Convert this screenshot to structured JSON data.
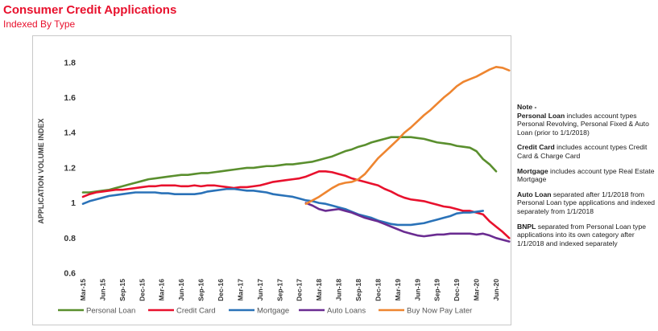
{
  "header": {
    "title": "Consumer Credit Applications",
    "subtitle": "Indexed By Type"
  },
  "notes": {
    "title": "Note -",
    "items": [
      {
        "bold": "Personal Loan",
        "text": " includes account types Personal Revolving, Personal Fixed & Auto Loan (prior to 1/1/2018)"
      },
      {
        "bold": "Credit Card",
        "text": " includes account types Credit Card & Charge Card"
      },
      {
        "bold": "Mortgage",
        "text": " includes account type Real Estate Mortgage"
      },
      {
        "bold": "Auto Loan",
        "text": " separated after 1/1/2018 from Personal Loan type applications and indexed separately from 1/1/2018"
      },
      {
        "bold": "BNPL",
        "text": " separated from Personal Loan type applications into its own category after 1/1/2018 and indexed separately"
      }
    ]
  },
  "colors": {
    "title": "#e8112d",
    "personal_loan": "#5a8f2e",
    "credit_card": "#e8112d",
    "mortgage": "#2a72b8",
    "auto_loans": "#6a2c91",
    "bnpl": "#ee8530"
  },
  "chart_data": {
    "type": "line",
    "title": "Consumer Credit Applications",
    "subtitle": "Indexed By Type",
    "ylabel": "APPLICATION VOLUME INDEX",
    "xlabel": "",
    "ylim": [
      0.6,
      1.9
    ],
    "yticks": [
      0.6,
      0.8,
      1,
      1.2,
      1.4,
      1.6,
      1.8
    ],
    "ytick_labels": [
      "0.6",
      "0.8",
      "1",
      "1.2",
      "1.4",
      "1.6",
      "1.8"
    ],
    "grid": false,
    "legend_position": "bottom",
    "xtick_labels": [
      "Mar-15",
      "Jun-15",
      "Sep-15",
      "Dec-15",
      "Mar-16",
      "Jun-16",
      "Sep-16",
      "Dec-16",
      "Mar-17",
      "Jun-17",
      "Sep-17",
      "Dec-17",
      "Mar-18",
      "Jun-18",
      "Sep-18",
      "Dec-18",
      "Mar-19",
      "Jun-19",
      "Sep-19",
      "Dec-19",
      "Mar-20",
      "Jun-20"
    ],
    "x_start": "Mar-15",
    "x_end": "Jun-20",
    "series": [
      {
        "name": "Personal Loan",
        "color": "#5a8f2e",
        "start": "Mar-15",
        "values": [
          1.06,
          1.06,
          1.065,
          1.07,
          1.075,
          1.085,
          1.095,
          1.105,
          1.115,
          1.125,
          1.135,
          1.14,
          1.145,
          1.15,
          1.155,
          1.16,
          1.16,
          1.165,
          1.17,
          1.17,
          1.175,
          1.18,
          1.185,
          1.19,
          1.195,
          1.2,
          1.2,
          1.205,
          1.21,
          1.21,
          1.215,
          1.22,
          1.22,
          1.225,
          1.23,
          1.235,
          1.245,
          1.255,
          1.265,
          1.28,
          1.295,
          1.305,
          1.32,
          1.33,
          1.345,
          1.355,
          1.365,
          1.375,
          1.375,
          1.375,
          1.375,
          1.37,
          1.365,
          1.355,
          1.345,
          1.34,
          1.335,
          1.325,
          1.32,
          1.315,
          1.295,
          1.25,
          1.22,
          1.18
        ]
      },
      {
        "name": "Credit Card",
        "color": "#e8112d",
        "start": "Mar-15",
        "values": [
          1.035,
          1.05,
          1.06,
          1.065,
          1.07,
          1.075,
          1.075,
          1.08,
          1.085,
          1.09,
          1.095,
          1.095,
          1.1,
          1.1,
          1.1,
          1.095,
          1.095,
          1.1,
          1.095,
          1.1,
          1.1,
          1.095,
          1.09,
          1.085,
          1.09,
          1.09,
          1.095,
          1.1,
          1.11,
          1.12,
          1.125,
          1.13,
          1.135,
          1.14,
          1.15,
          1.165,
          1.18,
          1.18,
          1.175,
          1.165,
          1.155,
          1.14,
          1.13,
          1.12,
          1.11,
          1.1,
          1.08,
          1.065,
          1.045,
          1.03,
          1.02,
          1.015,
          1.01,
          1.0,
          0.99,
          0.98,
          0.975,
          0.965,
          0.955,
          0.955,
          0.945,
          0.935,
          0.895,
          0.865,
          0.835,
          0.8
        ]
      },
      {
        "name": "Mortgage",
        "color": "#2a72b8",
        "start": "Mar-15",
        "values": [
          0.995,
          1.01,
          1.02,
          1.03,
          1.04,
          1.045,
          1.05,
          1.055,
          1.06,
          1.06,
          1.06,
          1.06,
          1.055,
          1.055,
          1.05,
          1.05,
          1.05,
          1.05,
          1.055,
          1.065,
          1.07,
          1.075,
          1.08,
          1.08,
          1.075,
          1.07,
          1.07,
          1.065,
          1.06,
          1.05,
          1.045,
          1.04,
          1.035,
          1.025,
          1.015,
          1.01,
          1.0,
          0.995,
          0.985,
          0.975,
          0.965,
          0.95,
          0.935,
          0.925,
          0.915,
          0.9,
          0.89,
          0.88,
          0.875,
          0.875,
          0.875,
          0.88,
          0.885,
          0.895,
          0.905,
          0.915,
          0.925,
          0.94,
          0.945,
          0.945,
          0.95,
          0.955
        ]
      },
      {
        "name": "Auto Loans",
        "color": "#6a2c91",
        "start": "Jan-18",
        "values": [
          1.0,
          0.985,
          0.965,
          0.955,
          0.96,
          0.965,
          0.955,
          0.945,
          0.93,
          0.915,
          0.905,
          0.895,
          0.88,
          0.865,
          0.85,
          0.835,
          0.825,
          0.815,
          0.81,
          0.815,
          0.82,
          0.82,
          0.825,
          0.825,
          0.825,
          0.825,
          0.82,
          0.825,
          0.815,
          0.8,
          0.79,
          0.78
        ]
      },
      {
        "name": "Buy Now Pay Later",
        "color": "#ee8530",
        "start": "Jan-18",
        "values": [
          0.995,
          1.015,
          1.035,
          1.06,
          1.085,
          1.105,
          1.115,
          1.12,
          1.135,
          1.165,
          1.21,
          1.255,
          1.29,
          1.325,
          1.36,
          1.4,
          1.43,
          1.465,
          1.5,
          1.53,
          1.565,
          1.6,
          1.63,
          1.665,
          1.69,
          1.705,
          1.72,
          1.74,
          1.76,
          1.775,
          1.77,
          1.755
        ]
      }
    ]
  }
}
